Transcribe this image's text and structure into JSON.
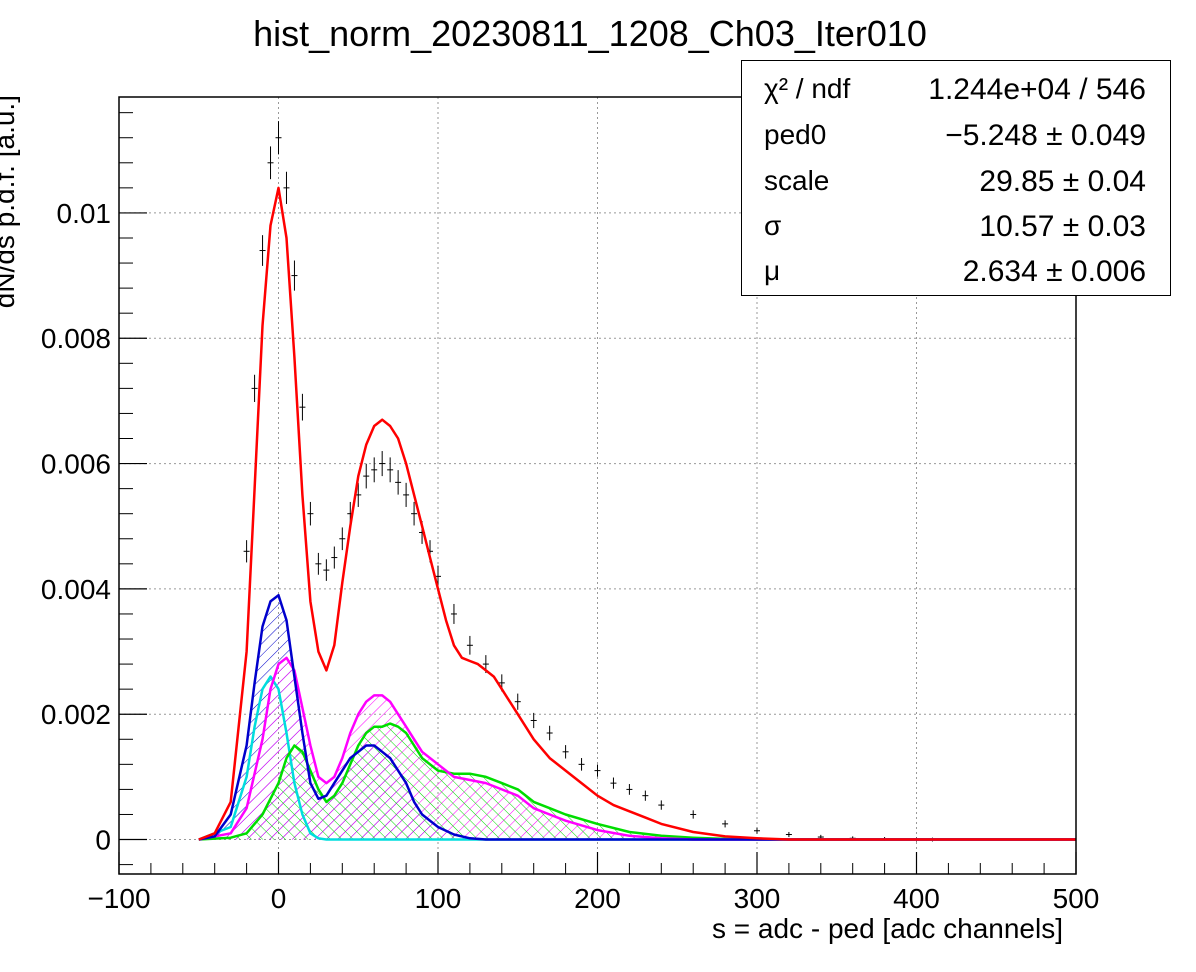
{
  "chart_data": {
    "type": "line",
    "title": "hist_norm_20230811_1208_Ch03_Iter010",
    "xlabel": "s = adc - ped [adc channels]",
    "ylabel": "dN/ds p.d.f. [a.u.]",
    "xlim": [
      -100,
      500
    ],
    "ylim": [
      -0.00055,
      0.01185
    ],
    "x_ticks": [
      -100,
      0,
      100,
      200,
      300,
      400,
      500
    ],
    "x_tick_labels": [
      "−100",
      "0",
      "100",
      "200",
      "300",
      "400",
      "500"
    ],
    "y_ticks": [
      0,
      0.002,
      0.004,
      0.006,
      0.008,
      0.01
    ],
    "y_tick_labels": [
      "0",
      "0.002",
      "0.004",
      "0.006",
      "0.008",
      "0.01"
    ],
    "grid": true,
    "colors": {
      "data": "#000000",
      "total_fit": "#ff0000",
      "blue": "#0000cc",
      "magenta": "#ff00ff",
      "green": "#00dd00",
      "cyan": "#00dddd"
    },
    "data_points": [
      [
        -20,
        0.0046
      ],
      [
        -15,
        0.0072
      ],
      [
        -10,
        0.0094
      ],
      [
        -5,
        0.0108
      ],
      [
        0,
        0.0112
      ],
      [
        5,
        0.0104
      ],
      [
        10,
        0.009
      ],
      [
        15,
        0.0069
      ],
      [
        20,
        0.0052
      ],
      [
        25,
        0.0044
      ],
      [
        30,
        0.0043
      ],
      [
        35,
        0.0045
      ],
      [
        40,
        0.0048
      ],
      [
        45,
        0.0052
      ],
      [
        50,
        0.0055
      ],
      [
        55,
        0.0058
      ],
      [
        60,
        0.0059
      ],
      [
        65,
        0.006
      ],
      [
        70,
        0.0059
      ],
      [
        75,
        0.0057
      ],
      [
        80,
        0.0055
      ],
      [
        85,
        0.0052
      ],
      [
        90,
        0.0049
      ],
      [
        95,
        0.0046
      ],
      [
        100,
        0.0042
      ],
      [
        110,
        0.0036
      ],
      [
        120,
        0.0031
      ],
      [
        130,
        0.0028
      ],
      [
        140,
        0.0025
      ],
      [
        150,
        0.0022
      ],
      [
        160,
        0.0019
      ],
      [
        170,
        0.0017
      ],
      [
        180,
        0.0014
      ],
      [
        190,
        0.0012
      ],
      [
        200,
        0.0011
      ],
      [
        210,
        0.0009
      ],
      [
        220,
        0.0008
      ],
      [
        230,
        0.0007
      ],
      [
        240,
        0.00055
      ],
      [
        260,
        0.0004
      ],
      [
        280,
        0.00025
      ],
      [
        300,
        0.00014
      ],
      [
        320,
        8e-05
      ],
      [
        340,
        4e-05
      ],
      [
        360,
        2e-05
      ],
      [
        380,
        1e-05
      ],
      [
        400,
        0.0
      ],
      [
        410,
        0.0
      ]
    ],
    "series": [
      {
        "color": "#ff0000",
        "points": [
          [
            -50,
            0
          ],
          [
            -40,
            0.0001
          ],
          [
            -30,
            0.0006
          ],
          [
            -20,
            0.003
          ],
          [
            -15,
            0.0056
          ],
          [
            -10,
            0.0082
          ],
          [
            -5,
            0.0098
          ],
          [
            0,
            0.0104
          ],
          [
            5,
            0.0096
          ],
          [
            10,
            0.0077
          ],
          [
            15,
            0.0055
          ],
          [
            20,
            0.0038
          ],
          [
            25,
            0.003
          ],
          [
            30,
            0.0027
          ],
          [
            35,
            0.0031
          ],
          [
            40,
            0.0041
          ],
          [
            45,
            0.005
          ],
          [
            50,
            0.0058
          ],
          [
            55,
            0.0063
          ],
          [
            60,
            0.0066
          ],
          [
            65,
            0.0067
          ],
          [
            70,
            0.0066
          ],
          [
            75,
            0.0064
          ],
          [
            80,
            0.006
          ],
          [
            85,
            0.0055
          ],
          [
            90,
            0.005
          ],
          [
            95,
            0.0045
          ],
          [
            100,
            0.004
          ],
          [
            105,
            0.0035
          ],
          [
            110,
            0.0031
          ],
          [
            115,
            0.0029
          ],
          [
            120,
            0.00285
          ],
          [
            125,
            0.0028
          ],
          [
            130,
            0.0027
          ],
          [
            135,
            0.0026
          ],
          [
            140,
            0.0024
          ],
          [
            150,
            0.002
          ],
          [
            160,
            0.0016
          ],
          [
            170,
            0.0013
          ],
          [
            180,
            0.0011
          ],
          [
            190,
            0.0009
          ],
          [
            200,
            0.0007
          ],
          [
            210,
            0.00055
          ],
          [
            220,
            0.00045
          ],
          [
            230,
            0.00035
          ],
          [
            240,
            0.00025
          ],
          [
            260,
            0.00012
          ],
          [
            280,
            5e-05
          ],
          [
            300,
            2e-05
          ],
          [
            320,
            0
          ],
          [
            500,
            0
          ]
        ]
      },
      {
        "color": "#0000cc",
        "hatch": true,
        "points": [
          [
            -50,
            0
          ],
          [
            -40,
            5e-05
          ],
          [
            -30,
            0.0004
          ],
          [
            -20,
            0.0015
          ],
          [
            -15,
            0.0025
          ],
          [
            -10,
            0.0034
          ],
          [
            -5,
            0.0038
          ],
          [
            0,
            0.0039
          ],
          [
            5,
            0.0035
          ],
          [
            10,
            0.0026
          ],
          [
            15,
            0.0017
          ],
          [
            20,
            0.0009
          ],
          [
            25,
            0.00065
          ],
          [
            30,
            0.0007
          ],
          [
            35,
            0.0009
          ],
          [
            40,
            0.0011
          ],
          [
            45,
            0.0013
          ],
          [
            50,
            0.0014
          ],
          [
            55,
            0.0015
          ],
          [
            60,
            0.0015
          ],
          [
            65,
            0.0014
          ],
          [
            70,
            0.0013
          ],
          [
            75,
            0.0011
          ],
          [
            80,
            0.0009
          ],
          [
            85,
            0.0006
          ],
          [
            90,
            0.0004
          ],
          [
            100,
            0.0002
          ],
          [
            110,
            8e-05
          ],
          [
            120,
            2e-05
          ],
          [
            130,
            0
          ],
          [
            500,
            0
          ]
        ]
      },
      {
        "color": "#ff00ff",
        "hatch": true,
        "points": [
          [
            -50,
            0
          ],
          [
            -30,
            0.0001
          ],
          [
            -20,
            0.0005
          ],
          [
            -10,
            0.0016
          ],
          [
            -5,
            0.0024
          ],
          [
            0,
            0.0028
          ],
          [
            5,
            0.0029
          ],
          [
            10,
            0.0027
          ],
          [
            15,
            0.0021
          ],
          [
            20,
            0.0015
          ],
          [
            25,
            0.001
          ],
          [
            30,
            0.0009
          ],
          [
            35,
            0.001
          ],
          [
            40,
            0.0013
          ],
          [
            45,
            0.0017
          ],
          [
            50,
            0.002
          ],
          [
            55,
            0.0022
          ],
          [
            60,
            0.0023
          ],
          [
            65,
            0.0023
          ],
          [
            70,
            0.0022
          ],
          [
            75,
            0.002
          ],
          [
            80,
            0.0018
          ],
          [
            85,
            0.0016
          ],
          [
            90,
            0.0014
          ],
          [
            100,
            0.0012
          ],
          [
            110,
            0.001
          ],
          [
            120,
            0.00095
          ],
          [
            130,
            0.0009
          ],
          [
            140,
            0.0008
          ],
          [
            150,
            0.0007
          ],
          [
            160,
            0.0005
          ],
          [
            170,
            0.0004
          ],
          [
            180,
            0.0003
          ],
          [
            200,
            0.00015
          ],
          [
            220,
            6e-05
          ],
          [
            240,
            2e-05
          ],
          [
            260,
            0
          ],
          [
            500,
            0
          ]
        ]
      },
      {
        "color": "#00dd00",
        "hatch": true,
        "points": [
          [
            -50,
            0
          ],
          [
            -30,
            3e-05
          ],
          [
            -20,
            0.0001
          ],
          [
            -10,
            0.0004
          ],
          [
            0,
            0.0009
          ],
          [
            5,
            0.0013
          ],
          [
            10,
            0.0015
          ],
          [
            15,
            0.0014
          ],
          [
            20,
            0.0011
          ],
          [
            25,
            0.0008
          ],
          [
            30,
            0.0006
          ],
          [
            35,
            0.0007
          ],
          [
            40,
            0.0009
          ],
          [
            45,
            0.0012
          ],
          [
            50,
            0.0015
          ],
          [
            55,
            0.0017
          ],
          [
            60,
            0.0018
          ],
          [
            65,
            0.0018
          ],
          [
            70,
            0.00185
          ],
          [
            75,
            0.0018
          ],
          [
            80,
            0.0017
          ],
          [
            85,
            0.0015
          ],
          [
            90,
            0.0013
          ],
          [
            100,
            0.0011
          ],
          [
            110,
            0.00105
          ],
          [
            120,
            0.00105
          ],
          [
            130,
            0.001
          ],
          [
            140,
            0.0009
          ],
          [
            150,
            0.0008
          ],
          [
            160,
            0.0006
          ],
          [
            170,
            0.0005
          ],
          [
            180,
            0.0004
          ],
          [
            200,
            0.00025
          ],
          [
            220,
            0.00012
          ],
          [
            240,
            6e-05
          ],
          [
            260,
            3e-05
          ],
          [
            280,
            1e-05
          ],
          [
            300,
            0
          ],
          [
            500,
            0
          ]
        ]
      },
      {
        "color": "#00dddd",
        "points": [
          [
            -50,
            0
          ],
          [
            -30,
            0.0002
          ],
          [
            -20,
            0.001
          ],
          [
            -15,
            0.0018
          ],
          [
            -10,
            0.0024
          ],
          [
            -5,
            0.0026
          ],
          [
            0,
            0.0024
          ],
          [
            5,
            0.0017
          ],
          [
            10,
            0.0009
          ],
          [
            15,
            0.0004
          ],
          [
            20,
            0.0001
          ],
          [
            25,
            2e-05
          ],
          [
            30,
            0
          ],
          [
            500,
            0
          ]
        ]
      }
    ]
  },
  "stats": {
    "rows": [
      {
        "name": "χ² / ndf",
        "value": "1.244e+04 / 546"
      },
      {
        "name": "ped0",
        "value": "−5.248 ± 0.049"
      },
      {
        "name": "scale",
        "value": "29.85 ± 0.04"
      },
      {
        "name": "σ",
        "value": "10.57 ± 0.03"
      },
      {
        "name": "μ",
        "value": "2.634 ± 0.006"
      }
    ]
  }
}
